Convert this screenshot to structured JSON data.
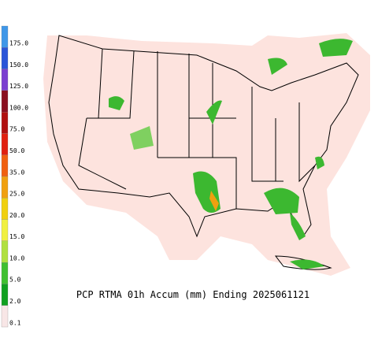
{
  "title": "PCP RTMA 01h Accum (mm) Ending 2025061121",
  "legend": {
    "items": [
      {
        "label": "175.0",
        "color": "#3f97e8"
      },
      {
        "label": "150.0",
        "color": "#2a55d8"
      },
      {
        "label": "125.0",
        "color": "#7a3fd0"
      },
      {
        "label": "100.0",
        "color": "#8a1020"
      },
      {
        "label": "75.0",
        "color": "#b01010"
      },
      {
        "label": "50.0",
        "color": "#e02010"
      },
      {
        "label": "35.0",
        "color": "#f06010"
      },
      {
        "label": "25.0",
        "color": "#f0a010"
      },
      {
        "label": "20.0",
        "color": "#f0d010"
      },
      {
        "label": "15.0",
        "color": "#f0f040"
      },
      {
        "label": "10.0",
        "color": "#b0e040"
      },
      {
        "label": "5.0",
        "color": "#40c030"
      },
      {
        "label": "2.0",
        "color": "#10a020"
      },
      {
        "label": "0.1",
        "color": "#f8e6e6"
      }
    ]
  }
}
